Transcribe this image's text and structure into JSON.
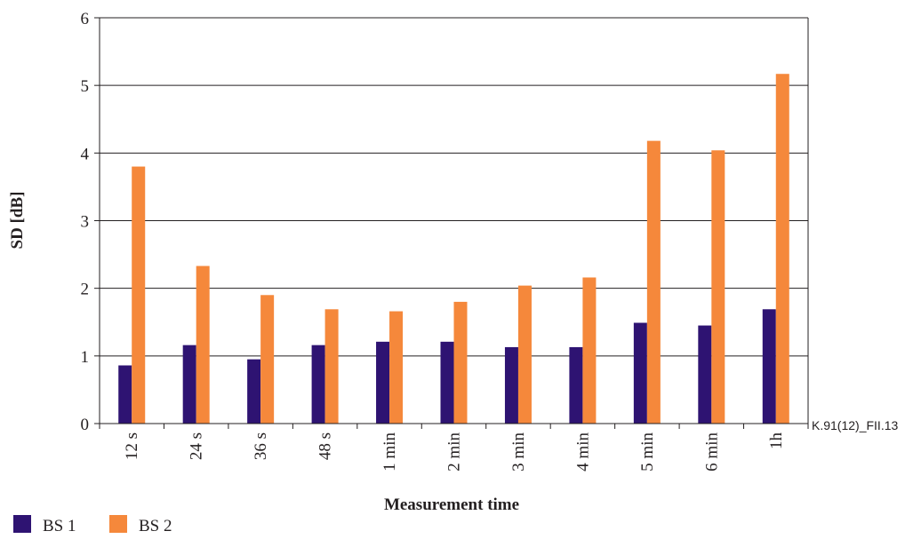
{
  "chart_data": {
    "type": "bar",
    "ylabel": "SD [dB]",
    "xlabel": "Measurement time",
    "reference": "K.91(12)_FII.13",
    "ylim": [
      0,
      6
    ],
    "yticks": [
      0,
      1,
      2,
      3,
      4,
      5,
      6
    ],
    "grid": true,
    "legend_position": "bottom-left",
    "categories": [
      "12 s",
      "24 s",
      "36 s",
      "48 s",
      "1 min",
      "2 min",
      "3 min",
      "4 min",
      "5 min",
      "6 min",
      "1h"
    ],
    "series": [
      {
        "name": "BS 1",
        "color": "#2e1372",
        "values": [
          0.86,
          1.16,
          0.95,
          1.16,
          1.21,
          1.21,
          1.13,
          1.13,
          1.49,
          1.45,
          1.69
        ]
      },
      {
        "name": "BS 2",
        "color": "#f5883b",
        "values": [
          3.8,
          2.33,
          1.9,
          1.69,
          1.66,
          1.8,
          2.04,
          2.16,
          4.18,
          4.04,
          5.17
        ]
      }
    ]
  }
}
